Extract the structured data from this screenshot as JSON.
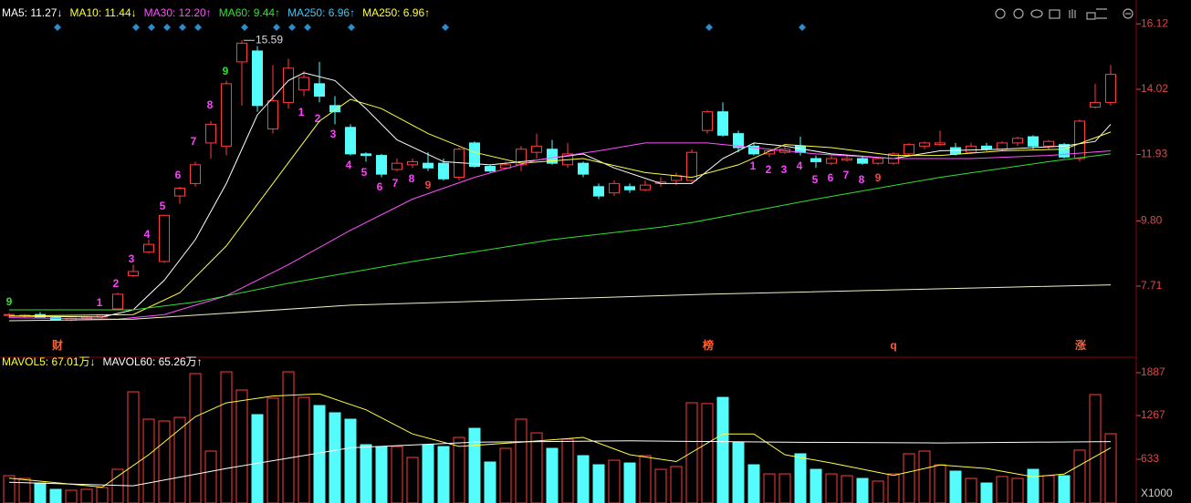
{
  "chart_data": [
    {
      "type": "candlestick",
      "legend": [
        {
          "text": "MA5: 11.27↓",
          "color": "#ffffff"
        },
        {
          "text": "MA10: 11.44↓",
          "color": "#ffff3c"
        },
        {
          "text": "MA30: 12.20↑",
          "color": "#ff50ff"
        },
        {
          "text": "MA60: 9.44↑",
          "color": "#30e030"
        },
        {
          "text": "MA250: 6.96↑",
          "color": "#3cc8ff"
        },
        {
          "text": "MA250: 6.96↑",
          "color": "#ffff3c"
        }
      ],
      "open": [
        6.78,
        6.75,
        6.8,
        6.7,
        6.62,
        6.68,
        6.72,
        6.98,
        8.05,
        8.8,
        8.5,
        10.6,
        11.0,
        12.3,
        12.2,
        14.9,
        15.25,
        12.75,
        13.6,
        14.0,
        14.2,
        13.5,
        12.8,
        11.95,
        11.9,
        11.45,
        11.6,
        11.65,
        11.65,
        11.2,
        12.3,
        11.55,
        11.5,
        11.6,
        12.0,
        12.1,
        11.6,
        11.65,
        10.9,
        10.7,
        10.9,
        10.8,
        11.0,
        11.1,
        11.1,
        12.7,
        13.3,
        12.6,
        12.2,
        11.95,
        12.0,
        12.2,
        11.8,
        11.65,
        11.75,
        11.8,
        11.65,
        11.65,
        11.95,
        12.2,
        12.25,
        12.15,
        12.0,
        12.2,
        12.1,
        12.3,
        12.5,
        12.2,
        12.25,
        11.8,
        13.45,
        13.6
      ],
      "high": [
        6.85,
        6.82,
        6.88,
        6.75,
        6.7,
        6.75,
        6.8,
        7.5,
        8.4,
        9.2,
        10.0,
        10.9,
        11.7,
        13.0,
        14.3,
        15.59,
        15.4,
        14.8,
        15.0,
        14.6,
        14.9,
        13.8,
        12.9,
        12.0,
        11.95,
        11.8,
        11.8,
        12.0,
        11.8,
        12.15,
        12.35,
        11.6,
        11.7,
        12.2,
        12.6,
        12.4,
        12.3,
        11.7,
        11.0,
        11.1,
        11.0,
        11.1,
        11.2,
        11.35,
        12.1,
        13.35,
        13.6,
        12.7,
        12.3,
        12.1,
        12.2,
        12.5,
        11.9,
        11.9,
        11.9,
        11.9,
        11.85,
        12.0,
        12.3,
        12.35,
        12.7,
        12.3,
        12.3,
        12.3,
        12.35,
        12.5,
        12.55,
        12.4,
        12.3,
        13.05,
        14.2,
        14.8
      ],
      "low": [
        6.7,
        6.7,
        6.72,
        6.6,
        6.58,
        6.65,
        6.68,
        6.95,
        8.0,
        8.75,
        8.45,
        10.35,
        10.9,
        11.8,
        11.9,
        13.5,
        13.3,
        12.6,
        13.4,
        13.8,
        13.6,
        12.9,
        11.9,
        11.7,
        11.2,
        11.4,
        11.5,
        11.4,
        11.1,
        11.1,
        11.5,
        11.35,
        11.45,
        11.4,
        11.8,
        11.6,
        11.5,
        11.2,
        10.5,
        10.6,
        10.7,
        10.75,
        10.9,
        10.95,
        11.0,
        12.6,
        12.5,
        12.0,
        11.9,
        11.85,
        11.95,
        11.9,
        11.5,
        11.6,
        11.7,
        11.6,
        11.6,
        11.6,
        11.9,
        12.1,
        12.2,
        11.9,
        11.95,
        12.05,
        12.05,
        12.2,
        12.1,
        12.1,
        11.8,
        11.7,
        13.4,
        13.5
      ],
      "close": [
        6.8,
        6.78,
        6.72,
        6.62,
        6.68,
        6.72,
        6.78,
        7.45,
        8.18,
        9.05,
        9.98,
        10.85,
        11.6,
        12.9,
        14.2,
        15.5,
        13.5,
        13.65,
        14.7,
        14.4,
        13.8,
        13.3,
        11.95,
        11.9,
        11.3,
        11.65,
        11.7,
        11.5,
        11.15,
        12.1,
        11.55,
        11.4,
        11.6,
        12.1,
        12.2,
        11.65,
        11.95,
        11.3,
        10.6,
        11.0,
        10.8,
        10.95,
        11.05,
        11.25,
        12.0,
        13.3,
        12.55,
        12.15,
        11.95,
        12.05,
        12.1,
        12.0,
        11.7,
        11.8,
        11.8,
        11.65,
        11.8,
        11.95,
        12.25,
        12.3,
        12.3,
        11.95,
        12.2,
        12.1,
        12.3,
        12.45,
        12.2,
        12.35,
        11.85,
        13.0,
        13.6,
        14.5
      ],
      "up_color": "#ff3c3c",
      "down_color": "#54fcfc",
      "lines": [
        {
          "color": "#ffffff",
          "x": [
            0,
            6,
            8,
            10,
            12,
            14,
            16,
            18,
            19,
            21,
            23,
            25,
            28,
            31,
            34,
            37,
            39,
            42,
            44,
            46,
            48,
            50,
            53,
            57,
            60,
            64,
            68,
            70,
            71
          ],
          "values": [
            6.75,
            6.72,
            6.95,
            7.9,
            9.2,
            11.0,
            13.2,
            14.3,
            14.55,
            14.3,
            13.4,
            12.4,
            11.7,
            11.6,
            11.75,
            11.95,
            11.5,
            11.0,
            11.0,
            11.8,
            12.3,
            12.2,
            11.95,
            11.8,
            12.05,
            12.1,
            12.2,
            12.35,
            12.9
          ]
        },
        {
          "color": "#ffff3c",
          "x": [
            0,
            8,
            11,
            14,
            17,
            20,
            22,
            24,
            27,
            30,
            33,
            37,
            41,
            44,
            47,
            50,
            53,
            57,
            60,
            64,
            68,
            71
          ],
          "values": [
            6.75,
            6.8,
            7.5,
            9.0,
            11.0,
            13.0,
            13.7,
            13.4,
            12.6,
            12.0,
            11.65,
            11.8,
            11.35,
            11.2,
            11.6,
            12.25,
            12.15,
            11.9,
            11.9,
            12.05,
            12.1,
            12.65
          ]
        },
        {
          "color": "#ff50ff",
          "x": [
            0,
            7,
            10,
            14,
            18,
            22,
            26,
            30,
            34,
            38,
            41,
            45,
            48,
            52,
            57,
            62,
            67,
            71
          ],
          "values": [
            6.7,
            6.65,
            6.8,
            7.4,
            8.4,
            9.5,
            10.5,
            11.2,
            11.75,
            12.05,
            12.3,
            12.3,
            12.15,
            11.95,
            11.8,
            11.8,
            11.9,
            12.05
          ]
        },
        {
          "color": "#30e030",
          "x": [
            0,
            8,
            12,
            18,
            26,
            35,
            42,
            44,
            52,
            60,
            67,
            71
          ],
          "values": [
            6.95,
            6.95,
            7.2,
            7.8,
            8.5,
            9.2,
            9.6,
            9.75,
            10.5,
            11.2,
            11.7,
            11.95
          ]
        },
        {
          "color": "#f0f0c8",
          "x": [
            0,
            8,
            22,
            45,
            71
          ],
          "values": [
            6.6,
            6.65,
            7.1,
            7.45,
            7.75
          ]
        }
      ],
      "high_label": "15.59",
      "td_labels": [
        "9",
        "1",
        "2",
        "3",
        "4",
        "5",
        "6",
        "7",
        "8",
        "9",
        "1",
        "2",
        "3",
        "4",
        "5",
        "6",
        "7",
        "8",
        "9",
        "1",
        "2",
        "3",
        "4",
        "5",
        "6",
        "7",
        "8",
        "9"
      ],
      "events": [
        "财",
        "榜",
        "q",
        "涨"
      ],
      "ylim": [
        5.49,
        16.65
      ],
      "yticks": [
        16.12,
        14.02,
        11.93,
        {
          "value": 9.8,
          "label": "9.80"
        },
        7.71
      ]
    },
    {
      "type": "bar",
      "legend": [
        {
          "text": "MAVOL5: 67.01万↓",
          "color": "#ffff3c"
        },
        {
          "text": "MAVOL60: 65.26万↑",
          "color": "#ffffff"
        }
      ],
      "values": [
        396,
        356,
        290,
        198,
        185,
        198,
        224,
        488,
        1610,
        1214,
        1188,
        1240,
        1874,
        752,
        1900,
        1636,
        1280,
        1518,
        1900,
        1530,
        1412,
        1307,
        1214,
        845,
        818,
        818,
        660,
        845,
        818,
        950,
        1082,
        594,
        792,
        1214,
        1016,
        792,
        924,
        686,
        554,
        620,
        580,
        686,
        488,
        528,
        1452,
        1440,
        1530,
        884,
        554,
        422,
        422,
        713,
        488,
        422,
        396,
        356,
        317,
        422,
        713,
        752,
        554,
        462,
        356,
        290,
        383,
        356,
        488,
        396,
        396,
        766,
        1570,
        1003
      ],
      "lines": [
        {
          "color": "#ffff3c",
          "x": [
            0,
            6,
            9,
            12,
            14,
            17,
            20,
            23,
            26,
            29,
            33,
            37,
            40,
            43,
            46,
            48,
            50,
            53,
            57,
            60,
            63,
            66,
            68,
            71
          ],
          "values": [
            360,
            230,
            700,
            1250,
            1450,
            1550,
            1580,
            1350,
            1000,
            820,
            880,
            950,
            700,
            600,
            1000,
            1000,
            700,
            580,
            400,
            550,
            500,
            380,
            420,
            800
          ]
        },
        {
          "color": "#ffffff",
          "x": [
            0,
            8,
            14,
            22,
            30,
            40,
            50,
            60,
            71
          ],
          "values": [
            300,
            250,
            500,
            800,
            880,
            900,
            880,
            870,
            890
          ]
        }
      ],
      "ylim": [
        0,
        2072
      ],
      "yticks": [
        1887,
        1267,
        633
      ],
      "unit_label": "X1000"
    }
  ]
}
